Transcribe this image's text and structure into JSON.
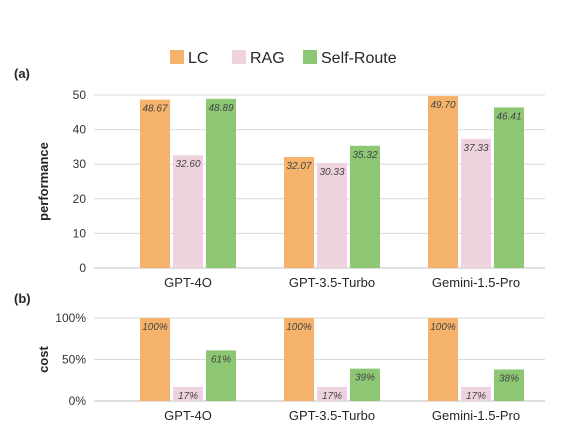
{
  "legend": [
    {
      "label": "LC",
      "color": "#F5B26B"
    },
    {
      "label": "RAG",
      "color": "#EED3DE"
    },
    {
      "label": "Self-Route",
      "color": "#8DC774"
    }
  ],
  "chart_data": [
    {
      "type": "bar",
      "panel_label": "(a)",
      "ylabel": "performance",
      "ylim": [
        0,
        50
      ],
      "yticks": [
        "0",
        "10",
        "20",
        "30",
        "40",
        "50"
      ],
      "yticks_values": [
        0,
        10,
        20,
        30,
        40,
        50
      ],
      "grid": true,
      "categories": [
        "GPT-4O",
        "GPT-3.5-Turbo",
        "Gemini-1.5-Pro"
      ],
      "series": [
        {
          "name": "LC",
          "values": [
            48.67,
            32.07,
            49.7
          ],
          "labels": [
            "48.67",
            "32.07",
            "49.70"
          ]
        },
        {
          "name": "RAG",
          "values": [
            32.6,
            30.33,
            37.33
          ],
          "labels": [
            "32.60",
            "30.33",
            "37.33"
          ]
        },
        {
          "name": "Self-Route",
          "values": [
            48.89,
            35.32,
            46.41
          ],
          "labels": [
            "48.89",
            "35.32",
            "46.41"
          ]
        }
      ]
    },
    {
      "type": "bar",
      "panel_label": "(b)",
      "ylabel": "cost",
      "ylim": [
        0,
        100
      ],
      "yticks": [
        "0%",
        "50%",
        "100%"
      ],
      "yticks_values": [
        0,
        50,
        100
      ],
      "grid": true,
      "categories": [
        "GPT-4O",
        "GPT-3.5-Turbo",
        "Gemini-1.5-Pro"
      ],
      "series": [
        {
          "name": "LC",
          "values": [
            100,
            100,
            100
          ],
          "labels": [
            "100%",
            "100%",
            "100%"
          ]
        },
        {
          "name": "RAG",
          "values": [
            17,
            17,
            17
          ],
          "labels": [
            "17%",
            "17%",
            "17%"
          ]
        },
        {
          "name": "Self-Route",
          "values": [
            61,
            39,
            38
          ],
          "labels": [
            "61%",
            "39%",
            "38%"
          ]
        }
      ]
    }
  ]
}
